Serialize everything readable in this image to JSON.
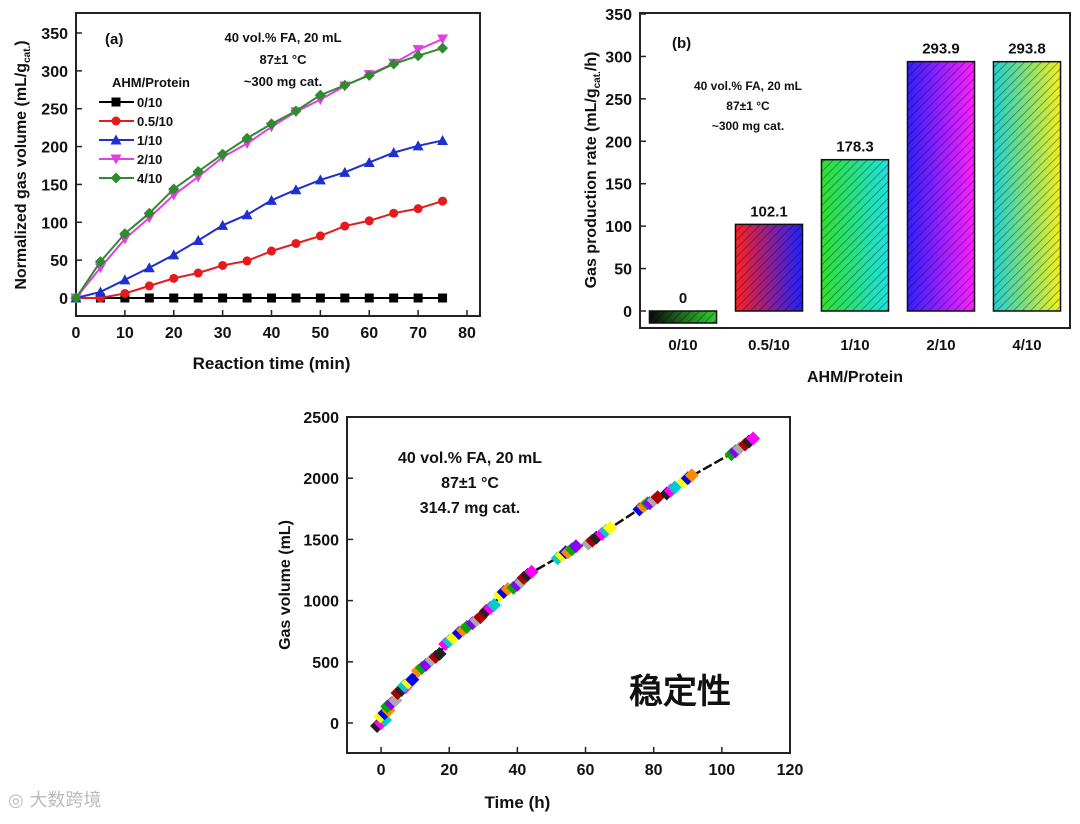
{
  "chart_data": [
    {
      "type": "line",
      "panel_label": "(a)",
      "xlabel": "Reaction time (min)",
      "ylabel": "Normalized gas volume (mL/g",
      "ylabel_sub": "cat.",
      "ylabel_end": ")",
      "xlim": [
        0,
        80
      ],
      "ylim": [
        -25,
        375
      ],
      "xticks": [
        0,
        10,
        20,
        30,
        40,
        50,
        60,
        70,
        80
      ],
      "yticks": [
        0,
        50,
        100,
        150,
        200,
        250,
        300,
        350
      ],
      "annotations": [
        "40 vol.% FA, 20 mL",
        "87±1 °C",
        "~300 mg cat."
      ],
      "legend_title": "AHM/Protein",
      "legend_position": "top-left",
      "x": [
        0,
        5,
        10,
        15,
        20,
        25,
        30,
        35,
        40,
        45,
        50,
        55,
        60,
        65,
        70,
        75
      ],
      "series": [
        {
          "name": "0/10",
          "color": "#000000",
          "marker": "square",
          "values": [
            0,
            0,
            0,
            0,
            0,
            0,
            0,
            0,
            0,
            0,
            0,
            0,
            0,
            0,
            0,
            0
          ]
        },
        {
          "name": "0.5/10",
          "color": "#e41a1c",
          "marker": "circle",
          "values": [
            0,
            0,
            6,
            16,
            26,
            33,
            43,
            49,
            62,
            72,
            82,
            95,
            102,
            112,
            118,
            128
          ]
        },
        {
          "name": "1/10",
          "color": "#1f2fd0",
          "marker": "triangle-up",
          "values": [
            0,
            8,
            24,
            40,
            57,
            76,
            96,
            110,
            129,
            143,
            156,
            166,
            179,
            192,
            201,
            208
          ]
        },
        {
          "name": "2/10",
          "color": "#e040e0",
          "marker": "triangle-down",
          "values": [
            0,
            40,
            78,
            106,
            136,
            160,
            186,
            204,
            226,
            246,
            262,
            280,
            295,
            310,
            328,
            342
          ]
        },
        {
          "name": "4/10",
          "color": "#2e8b2e",
          "marker": "diamond",
          "values": [
            0,
            48,
            85,
            112,
            144,
            167,
            190,
            211,
            230,
            247,
            268,
            281,
            294,
            309,
            320,
            330
          ]
        }
      ]
    },
    {
      "type": "bar",
      "panel_label": "(b)",
      "xlabel": "AHM/Protein",
      "ylabel": "Gas production rate (mL/g",
      "ylabel_sub": "cat.",
      "ylabel_end": "/h)",
      "ylim": [
        -20,
        350
      ],
      "yticks": [
        0,
        50,
        100,
        150,
        200,
        250,
        300,
        350
      ],
      "annotations": [
        "40 vol.% FA, 20 mL",
        "87±1 °C",
        "~300 mg cat."
      ],
      "categories": [
        "0/10",
        "0.5/10",
        "1/10",
        "2/10",
        "4/10"
      ],
      "values": [
        0,
        102.1,
        178.3,
        293.9,
        293.8
      ],
      "data_labels": [
        "0",
        "102.1",
        "178.3",
        "293.9",
        "293.8"
      ],
      "gradients": [
        [
          "#0a0a0a",
          "#2fd02f"
        ],
        [
          "#ff2020",
          "#2020ff"
        ],
        [
          "#30e030",
          "#20e0e0"
        ],
        [
          "#3020ff",
          "#ff20ff"
        ],
        [
          "#20d0d0",
          "#f0f020"
        ]
      ]
    },
    {
      "type": "scatter",
      "xlabel": "Time (h)",
      "ylabel": "Gas volume (mL)",
      "xlim": [
        -10,
        120
      ],
      "ylim": [
        -250,
        2500
      ],
      "xticks": [
        0,
        20,
        40,
        60,
        80,
        100,
        120
      ],
      "yticks": [
        0,
        500,
        1000,
        1500,
        2000,
        2500
      ],
      "annotations": [
        "40 vol.% FA, 20 mL",
        "87±1 °C",
        "314.7 mg cat."
      ],
      "chinese_label": "稳定性",
      "x": [
        0,
        1,
        3,
        6,
        8,
        12,
        16,
        20,
        24,
        28,
        32,
        36,
        40,
        43,
        53,
        56,
        62,
        66,
        77,
        80,
        85,
        90,
        104,
        108
      ],
      "y": [
        0,
        80,
        160,
        270,
        330,
        450,
        540,
        670,
        760,
        840,
        940,
        1070,
        1130,
        1210,
        1370,
        1420,
        1490,
        1570,
        1770,
        1820,
        1900,
        2000,
        2220,
        2300
      ],
      "marker_colors": [
        "#222222",
        "#ff00ff",
        "#00cccc",
        "#ffff00",
        "#0000ff",
        "#ff8800",
        "#00aa00",
        "#8800ff",
        "#aaaaaa",
        "#aa0000"
      ]
    }
  ],
  "watermark": "大数跨境"
}
